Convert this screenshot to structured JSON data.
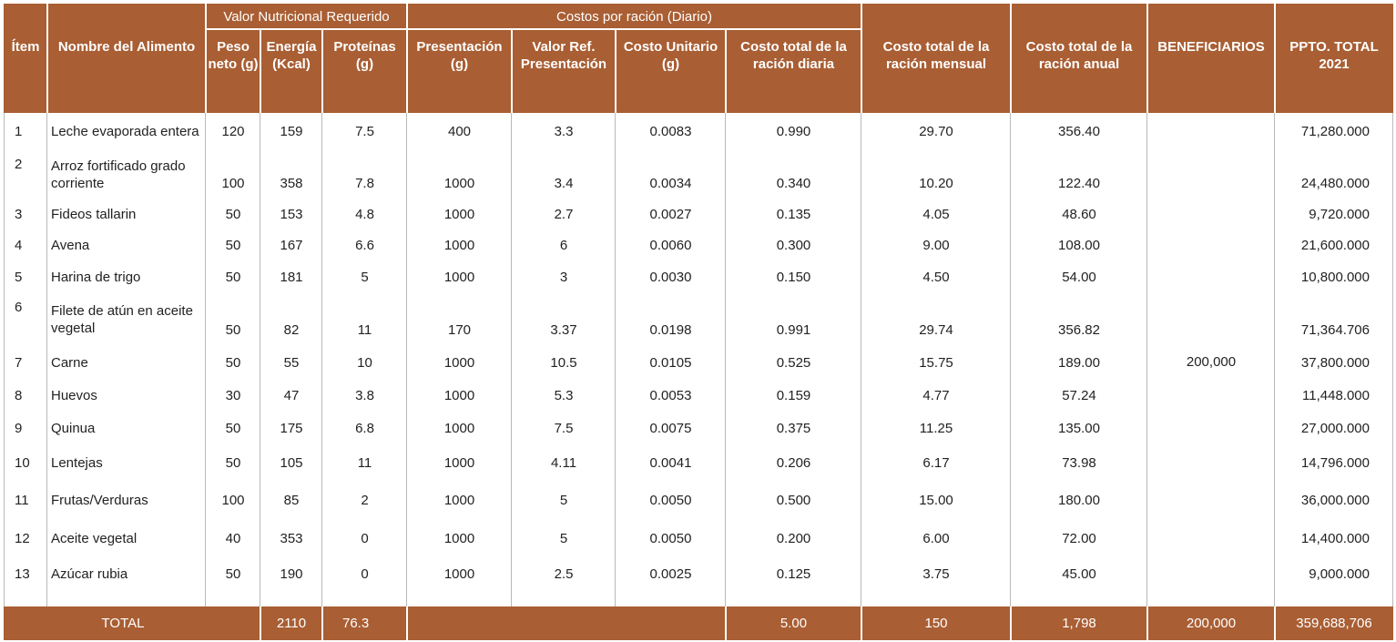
{
  "header": {
    "group_nutricional": "Valor Nutricional Requerido",
    "group_costos": "Costos por ración (Diario)",
    "columns": {
      "item": "Ítem",
      "nombre": "Nombre del Alimento",
      "peso": "Peso neto (g)",
      "energia": "Energía (Kcal)",
      "proteinas": "Proteínas (g)",
      "presentacion": "Presentación (g)",
      "valor_ref": "Valor Ref. Presentación",
      "costo_unitario": "Costo Unitario (g)",
      "costo_diaria": "Costo total de la ración diaria",
      "costo_mensual": "Costo total de la ración mensual",
      "costo_anual": "Costo total de la ración anual",
      "beneficiarios": "BENEFICIARIOS",
      "ppto": "PPTO. TOTAL 2021"
    }
  },
  "rows": [
    {
      "item": "1",
      "nombre": "Leche evaporada entera",
      "peso": "120",
      "energia": "159",
      "proteinas": "7.5",
      "presentacion": "400",
      "valor_ref": "3.3",
      "costo_unitario": "0.0083",
      "costo_diaria": "0.990",
      "costo_mensual": "29.70",
      "costo_anual": "356.40",
      "ppto": "71,280.000"
    },
    {
      "item": "2",
      "nombre": "Arroz fortificado grado corriente",
      "peso": "100",
      "energia": "358",
      "proteinas": "7.8",
      "presentacion": "1000",
      "valor_ref": "3.4",
      "costo_unitario": "0.0034",
      "costo_diaria": "0.340",
      "costo_mensual": "10.20",
      "costo_anual": "122.40",
      "ppto": "24,480.000"
    },
    {
      "item": "3",
      "nombre": "Fideos tallarin",
      "peso": "50",
      "energia": "153",
      "proteinas": "4.8",
      "presentacion": "1000",
      "valor_ref": "2.7",
      "costo_unitario": "0.0027",
      "costo_diaria": "0.135",
      "costo_mensual": "4.05",
      "costo_anual": "48.60",
      "ppto": "9,720.000"
    },
    {
      "item": "4",
      "nombre": "Avena",
      "peso": "50",
      "energia": "167",
      "proteinas": "6.6",
      "presentacion": "1000",
      "valor_ref": "6",
      "costo_unitario": "0.0060",
      "costo_diaria": "0.300",
      "costo_mensual": "9.00",
      "costo_anual": "108.00",
      "ppto": "21,600.000"
    },
    {
      "item": "5",
      "nombre": "Harina de trigo",
      "peso": "50",
      "energia": "181",
      "proteinas": "5",
      "presentacion": "1000",
      "valor_ref": "3",
      "costo_unitario": "0.0030",
      "costo_diaria": "0.150",
      "costo_mensual": "4.50",
      "costo_anual": "54.00",
      "ppto": "10,800.000"
    },
    {
      "item": "6",
      "nombre": "Filete de atún en aceite vegetal",
      "peso": "50",
      "energia": "82",
      "proteinas": "11",
      "presentacion": "170",
      "valor_ref": "3.37",
      "costo_unitario": "0.0198",
      "costo_diaria": "0.991",
      "costo_mensual": "29.74",
      "costo_anual": "356.82",
      "ppto": "71,364.706"
    },
    {
      "item": "7",
      "nombre": "Carne",
      "peso": "50",
      "energia": "55",
      "proteinas": "10",
      "presentacion": "1000",
      "valor_ref": "10.5",
      "costo_unitario": "0.0105",
      "costo_diaria": "0.525",
      "costo_mensual": "15.75",
      "costo_anual": "189.00",
      "ppto": "37,800.000"
    },
    {
      "item": "8",
      "nombre": "Huevos",
      "peso": "30",
      "energia": "47",
      "proteinas": "3.8",
      "presentacion": "1000",
      "valor_ref": "5.3",
      "costo_unitario": "0.0053",
      "costo_diaria": "0.159",
      "costo_mensual": "4.77",
      "costo_anual": "57.24",
      "ppto": "11,448.000"
    },
    {
      "item": "9",
      "nombre": "Quinua",
      "peso": "50",
      "energia": "175",
      "proteinas": "6.8",
      "presentacion": "1000",
      "valor_ref": "7.5",
      "costo_unitario": "0.0075",
      "costo_diaria": "0.375",
      "costo_mensual": "11.25",
      "costo_anual": "135.00",
      "ppto": "27,000.000"
    },
    {
      "item": "10",
      "nombre": "Lentejas",
      "peso": "50",
      "energia": "105",
      "proteinas": "11",
      "presentacion": "1000",
      "valor_ref": "4.11",
      "costo_unitario": "0.0041",
      "costo_diaria": "0.206",
      "costo_mensual": "6.17",
      "costo_anual": "73.98",
      "ppto": "14,796.000"
    },
    {
      "item": "11",
      "nombre": "Frutas/Verduras",
      "peso": "100",
      "energia": "85",
      "proteinas": "2",
      "presentacion": "1000",
      "valor_ref": "5",
      "costo_unitario": "0.0050",
      "costo_diaria": "0.500",
      "costo_mensual": "15.00",
      "costo_anual": "180.00",
      "ppto": "36,000.000"
    },
    {
      "item": "12",
      "nombre": "Aceite vegetal",
      "peso": "40",
      "energia": "353",
      "proteinas": "0",
      "presentacion": "1000",
      "valor_ref": "5",
      "costo_unitario": "0.0050",
      "costo_diaria": "0.200",
      "costo_mensual": "6.00",
      "costo_anual": "72.00",
      "ppto": "14,400.000"
    },
    {
      "item": "13",
      "nombre": "Azúcar rubia",
      "peso": "50",
      "energia": "190",
      "proteinas": "0",
      "presentacion": "1000",
      "valor_ref": "2.5",
      "costo_unitario": "0.0025",
      "costo_diaria": "0.125",
      "costo_mensual": "3.75",
      "costo_anual": "45.00",
      "ppto": "9,000.000"
    }
  ],
  "beneficiarios_value": "200,000",
  "total": {
    "label": "TOTAL",
    "energia": "2110",
    "proteinas": "76.3",
    "costo_diaria": "5.00",
    "costo_mensual": "150",
    "costo_anual": "1,798",
    "beneficiarios": "200,000",
    "ppto": "359,688,706"
  },
  "colors": {
    "header_bg": "#a95e33",
    "header_text": "#ffffff",
    "divider": "#c8c8c8"
  }
}
